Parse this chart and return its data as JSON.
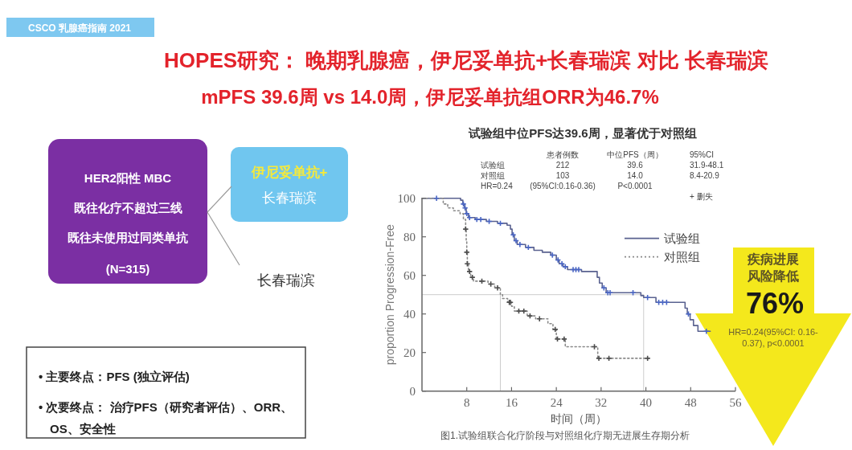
{
  "chart_data": {
    "type": "step",
    "title": "HOPES研究： 晚期乳腺癌，伊尼妥单抗+长春瑞滨 对比 长春瑞滨",
    "subtitle": "mPFS 39.6周 vs 14.0周，伊尼妥单抗组ORR为46.7%",
    "xlabel": "时间（周）",
    "ylabel": "proportion Progression-Free",
    "xlim": [
      0,
      56
    ],
    "ylim": [
      0,
      100
    ],
    "xticks": [
      8,
      16,
      24,
      32,
      40,
      48,
      56
    ],
    "yticks": [
      0,
      20,
      40,
      60,
      80,
      100
    ],
    "legend": "top right",
    "series": [
      {
        "type": "line",
        "color": "#cccccc",
        "x": [
          0,
          39.6,
          39.6
        ],
        "values": [
          50,
          50,
          0
        ]
      },
      {
        "type": "line",
        "color": "#cccccc",
        "x": [
          14.0,
          14.0
        ],
        "values": [
          50,
          0
        ]
      },
      {
        "name": "试验组",
        "color": "#5a6290",
        "line_style": "solid",
        "x": [
          0,
          6.9,
          7.3,
          7.6,
          7.9,
          8.3,
          9.5,
          11.5,
          13.5,
          15.2,
          15.8,
          16.1,
          16.5,
          17.0,
          18.5,
          20.0,
          21.5,
          23.0,
          24.0,
          24.5,
          25.2,
          26.0,
          28.5,
          31.3,
          31.7,
          32.2,
          32.9,
          39.1,
          39.6,
          41.8,
          47.0,
          47.4,
          47.9,
          48.5,
          49.3,
          51.5
        ],
        "values": [
          100,
          99,
          97,
          95,
          92,
          90,
          89,
          88,
          87,
          86,
          84,
          81,
          78,
          76,
          74.5,
          73,
          72,
          70.5,
          68,
          66,
          64.5,
          63,
          62,
          59,
          56,
          53.5,
          51,
          49.5,
          48.5,
          46,
          43,
          40,
          37,
          34,
          31,
          31
        ]
      },
      {
        "name": "对照组",
        "color": "#8a8a8a",
        "line_style": "dotted",
        "x": [
          0,
          3.8,
          4.6,
          5.6,
          6.8,
          7.4,
          7.8,
          7.9,
          8.0,
          8.1,
          8.3,
          8.7,
          9.2,
          11.8,
          13.0,
          14.0,
          14.4,
          15.3,
          16.0,
          16.5,
          18.8,
          20.3,
          22.5,
          23.4,
          24.0,
          25.6,
          31.4,
          40.5
        ],
        "values": [
          100,
          97,
          95,
          93.5,
          92,
          89,
          84,
          78,
          72,
          66,
          62,
          59,
          57,
          55.5,
          53.5,
          50,
          48,
          46,
          44,
          41.5,
          39,
          37.5,
          35,
          32,
          27,
          23,
          17,
          17
        ]
      },
      {
        "type": "scatter",
        "marker": "cross",
        "color": "#4a66c4",
        "x": [
          2.6,
          7.4,
          7.7,
          8.0,
          8.5,
          9.8,
          10.5,
          12.0,
          14.0,
          16.3,
          16.8,
          17.5,
          19.0,
          23.3,
          24.3,
          25.0,
          25.6,
          27.0,
          27.5,
          28.0,
          32.5,
          33.2,
          33.6,
          37.7,
          40.3,
          42.3,
          43.0,
          43.7,
          47.6,
          50.8
        ],
        "values": [
          100,
          97,
          95,
          92,
          90,
          89,
          89,
          88,
          87,
          81,
          78,
          76,
          74.5,
          70.5,
          68,
          66,
          64.5,
          63,
          63,
          63,
          53.5,
          51,
          51,
          51,
          48.5,
          46,
          46,
          46,
          40,
          31
        ]
      },
      {
        "type": "scatter",
        "marker": "cross",
        "color": "#4d4d4d",
        "x": [
          7.8,
          8.0,
          8.1,
          8.5,
          9.0,
          10.7,
          12.3,
          13.5,
          15.6,
          15.8,
          17.3,
          18.2,
          19.3,
          21.0,
          23.8,
          24.2,
          25.4,
          30.8,
          31.6,
          33.4,
          40.3
        ],
        "values": [
          84,
          72,
          66,
          62,
          59,
          57,
          55.5,
          53.5,
          46,
          46,
          41.5,
          41.5,
          39,
          37.5,
          32,
          27,
          27,
          23,
          17,
          17,
          17
        ]
      }
    ],
    "annotations": [
      "CSCO 乳腺癌指南 2021",
      "试验组中位PFS达39.6周，显著优于对照组",
      "HER2阳性 MBC",
      "既往化疗不超过三线",
      "既往未使用过同类单抗",
      "(N=315)",
      "伊尼妥单抗+",
      "长春瑞滨",
      "长春瑞滨",
      "• 主要终点：PFS (独立评估)",
      "• 次要终点： 治疗PFS（研究者评估）、ORR、OS、安全性",
      "患者例数",
      "中位PFS（周）",
      "95%CI",
      "试验组",
      "212",
      "39.6",
      "31.9-48.1",
      "对照组",
      "103",
      "14.0",
      "8.4-20.9",
      "HR=0.24",
      "(95%CI:0.16-0.36)",
      "P<0.0001",
      "+ 删失",
      "疾病进展",
      "风险降低",
      "76%",
      "HR=0.24(95%CI: 0.16-0.37), p<0.0001",
      "图1.试验组联合化疗阶段与对照组化疗期无进展生存期分析"
    ]
  }
}
